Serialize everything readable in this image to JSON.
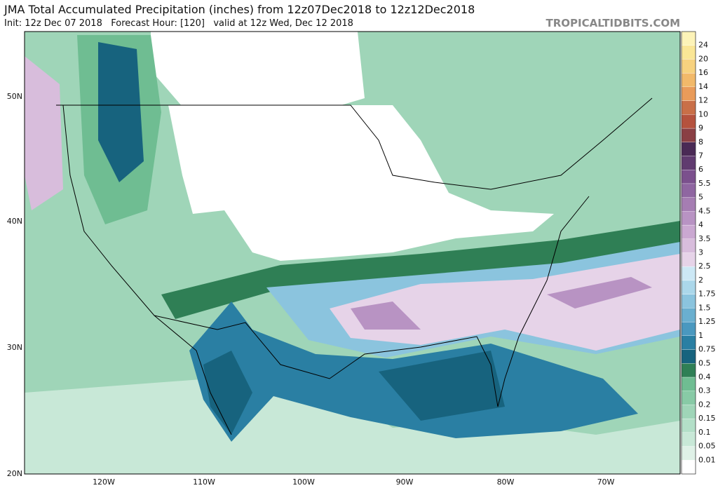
{
  "header": {
    "title": "JMA Total Accumulated Precipitation (inches) from 12z07Dec2018 to 12z12Dec2018",
    "subtitle": "Init: 12z Dec 07 2018   Forecast Hour: [120]   valid at 12z Wed, Dec 12 2018",
    "credit": "TROPICALTIDBITS.COM"
  },
  "map": {
    "lat_labels": [
      "50N",
      "40N",
      "30N",
      "20N"
    ],
    "lon_labels": [
      "120W",
      "110W",
      "100W",
      "90W",
      "80W",
      "70W"
    ]
  },
  "colorbar": {
    "labels": [
      "0.01",
      "0.05",
      "0.1",
      "0.15",
      "0.2",
      "0.3",
      "0.4",
      "0.5",
      "0.75",
      "1",
      "1.25",
      "1.5",
      "1.75",
      "2",
      "2.5",
      "3",
      "3.5",
      "4",
      "4.5",
      "5",
      "5.5",
      "6",
      "7",
      "8",
      "9",
      "10",
      "12",
      "14",
      "16",
      "20",
      "24"
    ],
    "colors": [
      "#ffffff",
      "#dff1e7",
      "#c8e8d7",
      "#b3dfc8",
      "#9fd5b8",
      "#88caa6",
      "#6fbd92",
      "#2f7f55",
      "#17637e",
      "#2a7fa3",
      "#4a98bf",
      "#6aafcf",
      "#8bc4de",
      "#abd7ea",
      "#cce8f5",
      "#e6d3e8",
      "#d8bddc",
      "#caa8d1",
      "#b893c3",
      "#a57db2",
      "#8f66a1",
      "#7b508d",
      "#603b6f",
      "#4a2a55",
      "#8a3f44",
      "#b5523e",
      "#c96f48",
      "#e99b5a",
      "#f2b96a",
      "#f7d27f",
      "#fae696",
      "#fdf3b8"
    ]
  }
}
